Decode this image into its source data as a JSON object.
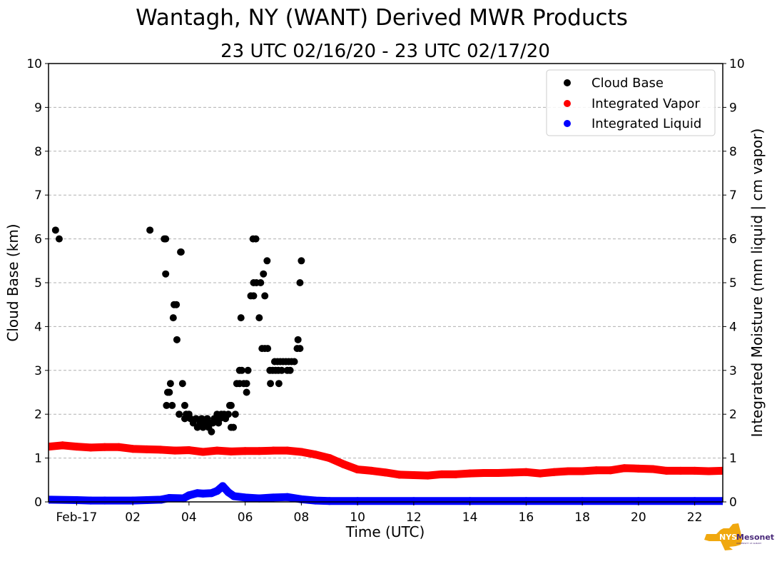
{
  "chart_data": {
    "type": "scatter",
    "title": "Wantagh, NY (WANT) Derived MWR Products",
    "subtitle": "23 UTC 02/16/20 - 23 UTC 02/17/20",
    "xlabel": "Time (UTC)",
    "ylabel": "Cloud Base (km)",
    "y2label": "Integrated Moisture (mm liquid | cm vapor)",
    "xlim_hours": [
      -1,
      23
    ],
    "ylim": [
      0,
      10
    ],
    "y2lim": [
      0,
      10
    ],
    "grid": true,
    "legend_position": "top-right",
    "x_ticks": [
      {
        "hour": 0,
        "label": "Feb-17"
      },
      {
        "hour": 2,
        "label": "02"
      },
      {
        "hour": 4,
        "label": "04"
      },
      {
        "hour": 6,
        "label": "06"
      },
      {
        "hour": 8,
        "label": "08"
      },
      {
        "hour": 10,
        "label": "10"
      },
      {
        "hour": 12,
        "label": "12"
      },
      {
        "hour": 14,
        "label": "14"
      },
      {
        "hour": 16,
        "label": "16"
      },
      {
        "hour": 18,
        "label": "18"
      },
      {
        "hour": 20,
        "label": "20"
      },
      {
        "hour": 22,
        "label": "22"
      }
    ],
    "y_ticks": [
      "0",
      "1",
      "2",
      "3",
      "4",
      "5",
      "6",
      "7",
      "8",
      "9",
      "10"
    ],
    "series": [
      {
        "name": "Cloud Base",
        "color": "#000000",
        "axis": "left",
        "points": [
          [
            -0.75,
            6.2
          ],
          [
            -0.62,
            6.0
          ],
          [
            2.61,
            6.2
          ],
          [
            3.12,
            6.0
          ],
          [
            3.17,
            6.0
          ],
          [
            3.17,
            5.2
          ],
          [
            3.7,
            5.7
          ],
          [
            3.72,
            5.7
          ],
          [
            3.47,
            4.5
          ],
          [
            3.55,
            4.5
          ],
          [
            3.44,
            4.2
          ],
          [
            3.57,
            3.7
          ],
          [
            3.34,
            2.7
          ],
          [
            3.77,
            2.7
          ],
          [
            3.24,
            2.5
          ],
          [
            3.3,
            2.5
          ],
          [
            3.2,
            2.2
          ],
          [
            3.4,
            2.2
          ],
          [
            3.85,
            2.2
          ],
          [
            3.65,
            2.0
          ],
          [
            3.9,
            2.0
          ],
          [
            4.0,
            2.0
          ],
          [
            3.85,
            1.9
          ],
          [
            4.05,
            1.9
          ],
          [
            4.15,
            1.8
          ],
          [
            4.25,
            1.9
          ],
          [
            4.3,
            1.7
          ],
          [
            4.4,
            1.8
          ],
          [
            4.45,
            1.9
          ],
          [
            4.5,
            1.7
          ],
          [
            4.55,
            1.75
          ],
          [
            4.6,
            1.8
          ],
          [
            4.65,
            1.9
          ],
          [
            4.7,
            1.7
          ],
          [
            4.75,
            1.8
          ],
          [
            4.8,
            1.6
          ],
          [
            4.85,
            1.8
          ],
          [
            4.9,
            1.9
          ],
          [
            4.95,
            1.85
          ],
          [
            5.0,
            2.0
          ],
          [
            5.05,
            1.8
          ],
          [
            5.1,
            1.9
          ],
          [
            5.15,
            2.0
          ],
          [
            5.25,
            2.0
          ],
          [
            5.3,
            1.9
          ],
          [
            5.4,
            2.0
          ],
          [
            5.45,
            2.2
          ],
          [
            5.5,
            2.2
          ],
          [
            5.5,
            1.7
          ],
          [
            5.58,
            1.7
          ],
          [
            5.65,
            2.0
          ],
          [
            5.7,
            2.7
          ],
          [
            5.8,
            2.7
          ],
          [
            5.8,
            3.0
          ],
          [
            5.88,
            3.0
          ],
          [
            5.85,
            4.2
          ],
          [
            5.95,
            2.7
          ],
          [
            6.05,
            2.7
          ],
          [
            6.05,
            2.5
          ],
          [
            6.1,
            3.0
          ],
          [
            6.2,
            4.7
          ],
          [
            6.3,
            4.7
          ],
          [
            6.3,
            5.0
          ],
          [
            6.28,
            6.0
          ],
          [
            6.38,
            6.0
          ],
          [
            6.4,
            5.0
          ],
          [
            6.5,
            4.2
          ],
          [
            6.55,
            5.0
          ],
          [
            6.6,
            3.5
          ],
          [
            6.65,
            5.2
          ],
          [
            6.7,
            3.5
          ],
          [
            6.7,
            4.7
          ],
          [
            6.78,
            5.5
          ],
          [
            6.8,
            3.5
          ],
          [
            6.88,
            3.0
          ],
          [
            6.9,
            2.7
          ],
          [
            6.98,
            3.0
          ],
          [
            7.05,
            3.2
          ],
          [
            7.08,
            3.0
          ],
          [
            7.15,
            3.2
          ],
          [
            7.18,
            3.0
          ],
          [
            7.2,
            2.7
          ],
          [
            7.25,
            3.2
          ],
          [
            7.3,
            3.0
          ],
          [
            7.35,
            3.2
          ],
          [
            7.45,
            3.2
          ],
          [
            7.5,
            3.0
          ],
          [
            7.55,
            3.2
          ],
          [
            7.6,
            3.0
          ],
          [
            7.65,
            3.2
          ],
          [
            7.75,
            3.2
          ],
          [
            7.85,
            3.5
          ],
          [
            7.88,
            3.7
          ],
          [
            7.95,
            3.5
          ],
          [
            7.95,
            5.0
          ],
          [
            8.0,
            5.5
          ]
        ]
      },
      {
        "name": "Integrated Vapor",
        "color": "#ff0000",
        "axis": "right",
        "line": [
          [
            -1,
            1.26
          ],
          [
            -0.5,
            1.29
          ],
          [
            0,
            1.26
          ],
          [
            0.5,
            1.24
          ],
          [
            1,
            1.25
          ],
          [
            1.5,
            1.25
          ],
          [
            2,
            1.21
          ],
          [
            2.5,
            1.2
          ],
          [
            3,
            1.19
          ],
          [
            3.5,
            1.17
          ],
          [
            4,
            1.18
          ],
          [
            4.5,
            1.14
          ],
          [
            5,
            1.17
          ],
          [
            5.5,
            1.15
          ],
          [
            6,
            1.16
          ],
          [
            6.5,
            1.16
          ],
          [
            7,
            1.17
          ],
          [
            7.5,
            1.17
          ],
          [
            8,
            1.14
          ],
          [
            8.5,
            1.08
          ],
          [
            9,
            1.0
          ],
          [
            9.5,
            0.86
          ],
          [
            10,
            0.74
          ],
          [
            10.5,
            0.71
          ],
          [
            11,
            0.67
          ],
          [
            11.5,
            0.62
          ],
          [
            12,
            0.61
          ],
          [
            12.5,
            0.6
          ],
          [
            13,
            0.63
          ],
          [
            13.5,
            0.63
          ],
          [
            14,
            0.65
          ],
          [
            14.5,
            0.66
          ],
          [
            15,
            0.66
          ],
          [
            15.5,
            0.67
          ],
          [
            16,
            0.68
          ],
          [
            16.5,
            0.65
          ],
          [
            17,
            0.68
          ],
          [
            17.5,
            0.7
          ],
          [
            18,
            0.7
          ],
          [
            18.5,
            0.72
          ],
          [
            19,
            0.72
          ],
          [
            19.5,
            0.77
          ],
          [
            20,
            0.76
          ],
          [
            20.5,
            0.75
          ],
          [
            21,
            0.71
          ],
          [
            21.5,
            0.71
          ],
          [
            22,
            0.71
          ],
          [
            22.5,
            0.7
          ],
          [
            23,
            0.71
          ]
        ]
      },
      {
        "name": "Integrated Liquid",
        "color": "#0000ff",
        "axis": "right",
        "line": [
          [
            -1,
            0.05
          ],
          [
            0,
            0.04
          ],
          [
            0.5,
            0.03
          ],
          [
            1,
            0.03
          ],
          [
            2,
            0.03
          ],
          [
            2.5,
            0.04
          ],
          [
            3,
            0.05
          ],
          [
            3.3,
            0.09
          ],
          [
            3.8,
            0.08
          ],
          [
            4,
            0.15
          ],
          [
            4.3,
            0.2
          ],
          [
            4.5,
            0.19
          ],
          [
            4.8,
            0.2
          ],
          [
            5.0,
            0.25
          ],
          [
            5.2,
            0.36
          ],
          [
            5.4,
            0.22
          ],
          [
            5.6,
            0.13
          ],
          [
            6,
            0.1
          ],
          [
            6.5,
            0.08
          ],
          [
            7,
            0.1
          ],
          [
            7.5,
            0.11
          ],
          [
            8,
            0.06
          ],
          [
            8.5,
            0.03
          ],
          [
            9,
            0.02
          ],
          [
            10,
            0.02
          ],
          [
            12,
            0.02
          ],
          [
            14,
            0.02
          ],
          [
            16,
            0.02
          ],
          [
            18,
            0.02
          ],
          [
            20,
            0.02
          ],
          [
            22,
            0.02
          ],
          [
            23,
            0.02
          ]
        ]
      }
    ]
  },
  "logo": {
    "text_nys": "NYS",
    "text_mesonet": "Mesonet",
    "text_sub": "UNIVERSITY AT ALBANY",
    "color_state": "#f0a80f",
    "color_text": "#4a2a7a"
  }
}
